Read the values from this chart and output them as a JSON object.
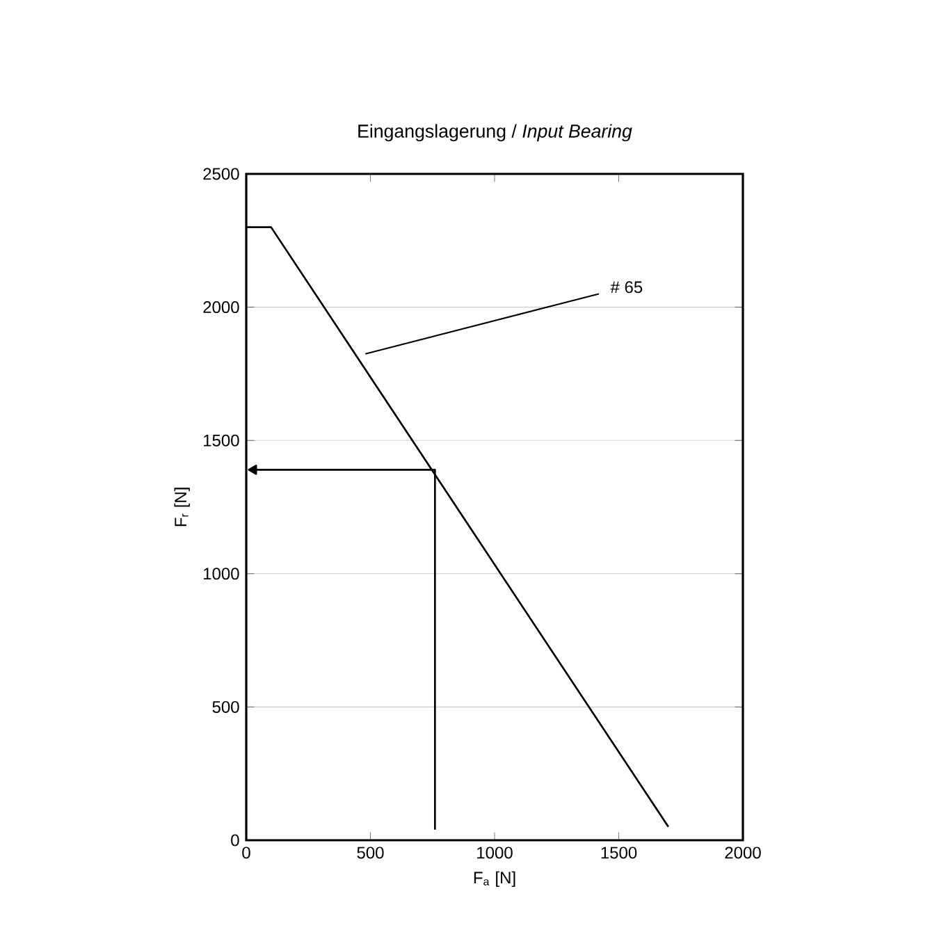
{
  "chart_data": {
    "type": "line",
    "title": "Eingangslagerung / *Input Bearing*",
    "xlabel": "F$_{a}$ [N]",
    "ylabel": "F$_{r}$ [N]",
    "series": [
      {
        "color": "#000000",
        "x": [
          0,
          100,
          1700
        ],
        "values": [
          2300,
          2300,
          50
        ]
      },
      {
        "color": "#000000",
        "x": [
          760,
          760,
          30
        ],
        "values": [
          40,
          1390,
          1390
        ]
      }
    ],
    "annotations": [
      "# 65"
    ],
    "xlim": [
      0,
      2000
    ],
    "ylim": [
      0,
      2500
    ],
    "xticks": [
      0,
      500,
      1000,
      1500,
      2000
    ],
    "yticks": [
      0,
      500,
      1000,
      1500,
      2000,
      2500
    ],
    "grid": "y",
    "marker": "none",
    "line_style": "solid"
  }
}
